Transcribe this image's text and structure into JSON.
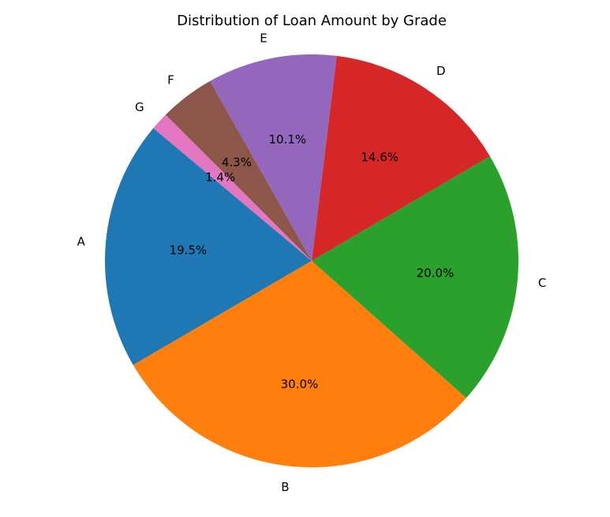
{
  "chart_data": {
    "type": "pie",
    "title": "Distribution of Loan Amount by Grade",
    "categories": [
      "A",
      "B",
      "C",
      "D",
      "E",
      "F",
      "G"
    ],
    "values": [
      19.5,
      30.0,
      20.0,
      14.6,
      10.1,
      4.3,
      1.4
    ],
    "percent_labels": [
      "19.5%",
      "30.0%",
      "20.0%",
      "14.6%",
      "10.1%",
      "4.3%",
      "1.4%"
    ],
    "colors": [
      "#1f77b4",
      "#ff7f0e",
      "#2ca02c",
      "#d62728",
      "#9467bd",
      "#8c564b",
      "#e377c2"
    ],
    "start_angle_deg": 140,
    "direction": "counterclockwise",
    "legend": "none"
  }
}
